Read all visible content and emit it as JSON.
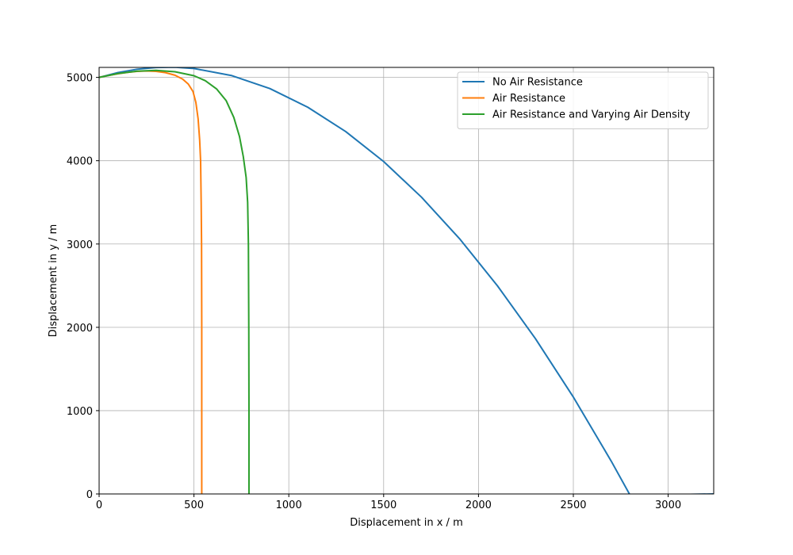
{
  "chart_data": {
    "type": "line",
    "xlabel": "Displacement in x / m",
    "ylabel": "Displacement in y / m",
    "xlim": [
      0,
      3240
    ],
    "ylim": [
      0,
      5120
    ],
    "xticks": [
      0,
      500,
      1000,
      1500,
      2000,
      2500,
      3000
    ],
    "yticks": [
      0,
      1000,
      2000,
      3000,
      4000,
      5000
    ],
    "grid": true,
    "legend_position": "top-right",
    "series": [
      {
        "name": "No Air Resistance",
        "color": "#1f77b4",
        "points": [
          [
            0,
            5000
          ],
          [
            100,
            5058
          ],
          [
            200,
            5098
          ],
          [
            300,
            5119
          ],
          [
            400,
            5122
          ],
          [
            500,
            5107
          ],
          [
            700,
            5021
          ],
          [
            900,
            4866
          ],
          [
            1100,
            4642
          ],
          [
            1300,
            4350
          ],
          [
            1500,
            3990
          ],
          [
            1700,
            3561
          ],
          [
            1900,
            3064
          ],
          [
            2100,
            2498
          ],
          [
            2300,
            1865
          ],
          [
            2500,
            1163
          ],
          [
            2700,
            393
          ],
          [
            2800,
            -18
          ],
          [
            3240,
            0
          ]
        ]
      },
      {
        "name": "Air Resistance",
        "color": "#ff7f0e",
        "points": [
          [
            0,
            5000
          ],
          [
            50,
            5023
          ],
          [
            100,
            5044
          ],
          [
            150,
            5061
          ],
          [
            200,
            5072
          ],
          [
            250,
            5077
          ],
          [
            300,
            5072
          ],
          [
            350,
            5057
          ],
          [
            400,
            5026
          ],
          [
            440,
            4980
          ],
          [
            470,
            4920
          ],
          [
            495,
            4830
          ],
          [
            510,
            4700
          ],
          [
            522,
            4500
          ],
          [
            530,
            4250
          ],
          [
            535,
            4000
          ],
          [
            538,
            3500
          ],
          [
            540,
            3000
          ],
          [
            541,
            2000
          ],
          [
            541,
            1000
          ],
          [
            541,
            0
          ]
        ]
      },
      {
        "name": "Air Resistance and Varying Air Density",
        "color": "#2ca02c",
        "points": [
          [
            0,
            5000
          ],
          [
            100,
            5046
          ],
          [
            200,
            5075
          ],
          [
            300,
            5084
          ],
          [
            400,
            5068
          ],
          [
            500,
            5020
          ],
          [
            560,
            4960
          ],
          [
            620,
            4860
          ],
          [
            670,
            4720
          ],
          [
            710,
            4520
          ],
          [
            740,
            4290
          ],
          [
            760,
            4050
          ],
          [
            775,
            3800
          ],
          [
            783,
            3500
          ],
          [
            787,
            3000
          ],
          [
            789,
            2000
          ],
          [
            790,
            1000
          ],
          [
            790,
            0
          ]
        ]
      }
    ]
  }
}
